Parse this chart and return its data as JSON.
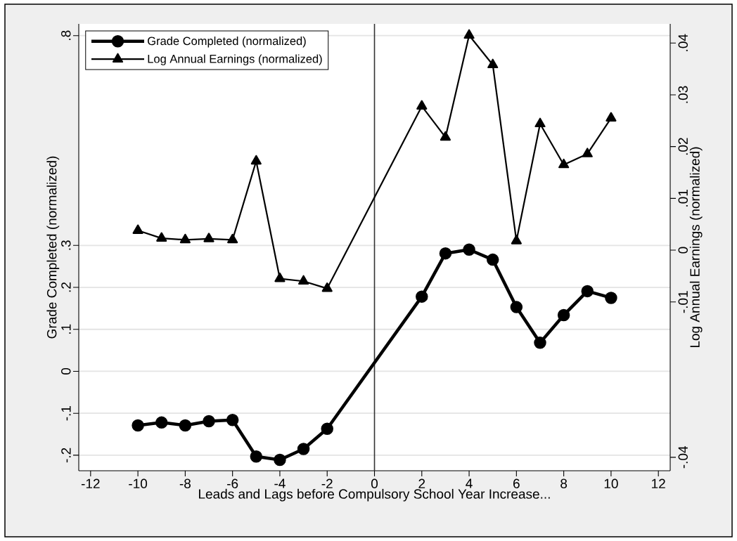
{
  "chart_data": {
    "type": "line",
    "xlabel": "Leads and Lags before Compulsory School Year Increase...",
    "ylabel": "Grade Completed (normalized)",
    "y2label": "Log Annual Earnings (normalized)",
    "x": [
      -10,
      -9,
      -8,
      -7,
      -6,
      -5,
      -4,
      -3,
      -2,
      2,
      3,
      4,
      5,
      6,
      7,
      8,
      9,
      10
    ],
    "series": [
      {
        "name": "Grade Completed (normalized)",
        "color": "#000000",
        "marker": "circle",
        "values": [
          -0.129,
          -0.122,
          -0.129,
          -0.119,
          -0.116,
          -0.203,
          -0.211,
          -0.185,
          -0.137,
          0.178,
          0.281,
          0.29,
          0.266,
          0.153,
          0.068,
          0.134,
          0.191,
          0.175
        ]
      },
      {
        "name": "Log Annual Earnings (normalized)",
        "color": "#000000",
        "marker": "triangle",
        "axis": "y2",
        "values": [
          0.0038,
          0.0023,
          0.002,
          0.0022,
          0.002,
          0.0172,
          -0.0055,
          -0.006,
          -0.0074,
          0.0278,
          0.0218,
          0.0415,
          0.0358,
          0.0018,
          0.0244,
          0.0165,
          0.0186,
          0.0255
        ]
      }
    ],
    "xlim": [
      -12.5,
      12.5
    ],
    "xticks": [
      -12,
      -10,
      -8,
      -6,
      -4,
      -2,
      0,
      2,
      4,
      6,
      8,
      10,
      12
    ],
    "ylim": [
      -0.237,
      0.828
    ],
    "yticks": [
      {
        "value": -0.2,
        "label": "-.2"
      },
      {
        "value": -0.1,
        "label": "-.1"
      },
      0,
      {
        "value": 0.1,
        "label": ".1"
      },
      {
        "value": 0.2,
        "label": ".2"
      },
      {
        "value": 0.3,
        "label": ".3"
      },
      {
        "value": 0.8,
        "label": ".8"
      }
    ],
    "y2lim": [
      -0.0426,
      0.0437
    ],
    "y2ticks": [
      {
        "value": -0.04,
        "label": "-.04"
      },
      {
        "value": -0.01,
        "label": "-.01"
      },
      0,
      {
        "value": 0.01,
        "label": ".01"
      },
      {
        "value": 0.02,
        "label": ".02"
      },
      {
        "value": 0.03,
        "label": ".03"
      },
      {
        "value": 0.04,
        "label": ".04"
      }
    ],
    "ref_lines": [
      {
        "axis": "x",
        "value": 0,
        "color": "#333333"
      }
    ],
    "grid": "y",
    "legend": "top left"
  }
}
